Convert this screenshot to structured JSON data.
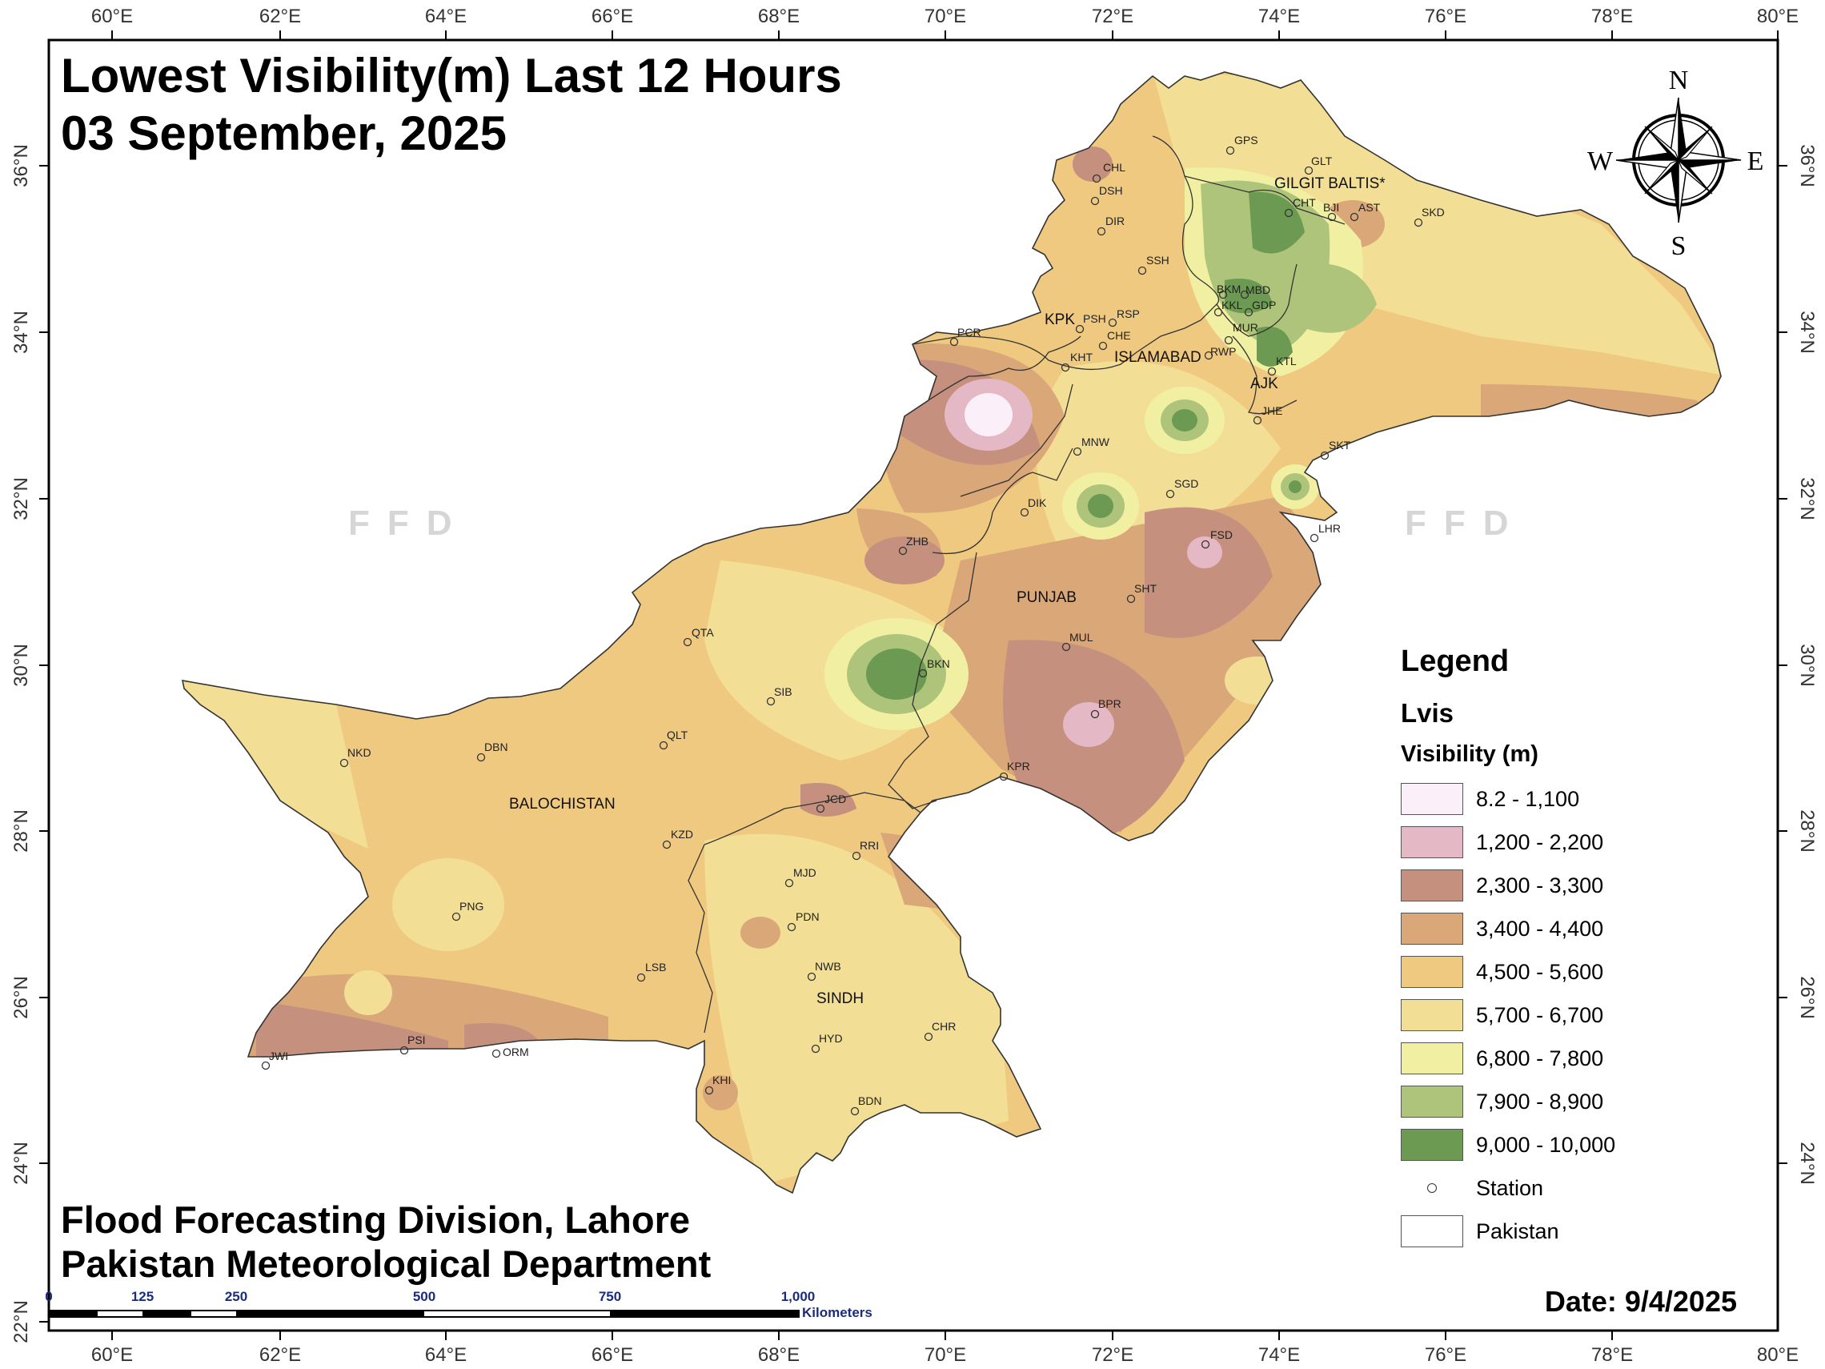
{
  "title": {
    "line1": "Lowest Visibility(m) Last 12 Hours",
    "line2": "03 September, 2025"
  },
  "footer": {
    "line1": "Flood Forecasting Division, Lahore",
    "line2": "Pakistan Meteorological Department"
  },
  "date_label": "Date: 9/4/2025",
  "watermark": "FFD",
  "axes": {
    "lon_ticks": [
      "60°E",
      "62°E",
      "64°E",
      "66°E",
      "68°E",
      "70°E",
      "72°E",
      "74°E",
      "76°E",
      "78°E",
      "80°E"
    ],
    "lat_ticks": [
      "36°N",
      "34°N",
      "32°N",
      "30°N",
      "28°N",
      "26°N",
      "24°N",
      "22°N"
    ]
  },
  "compass": {
    "n": "N",
    "s": "S",
    "e": "E",
    "w": "W"
  },
  "provinces": [
    "GILGIT BALTIS*",
    "KPK",
    "ISLAMABAD",
    "AJK",
    "PUNJAB",
    "BALOCHISTAN",
    "SINDH"
  ],
  "stations": [
    "GPS",
    "GLT",
    "CHL",
    "DSH",
    "CHT",
    "BJI",
    "AST",
    "SKD",
    "DIR",
    "SSH",
    "BKM",
    "MBD",
    "KKL",
    "GDP",
    "PSH",
    "RSP",
    "CHE",
    "MUR",
    "PCR",
    "KHT",
    "RWP",
    "KTL",
    "JHE",
    "MNW",
    "SKT",
    "SGD",
    "DIK",
    "LHR",
    "FSD",
    "ZHB",
    "SHT",
    "QTA",
    "MUL",
    "BKN",
    "SIB",
    "BPR",
    "NKD",
    "DBN",
    "QLT",
    "KPR",
    "JCD",
    "KZD",
    "RRI",
    "MJD",
    "PNG",
    "PDN",
    "LSB",
    "NWB",
    "HYD",
    "CHR",
    "PSI",
    "ORM",
    "JWI",
    "KHI",
    "BDN"
  ],
  "legend": {
    "title": "Legend",
    "layer": "Lvis",
    "field": "Visibility (m)",
    "classes": [
      {
        "label": "8.2 - 1,100",
        "color": "#fbf0fa"
      },
      {
        "label": "1,200 - 2,200",
        "color": "#e4b8c4"
      },
      {
        "label": "2,300 - 3,300",
        "color": "#c5907e"
      },
      {
        "label": "3,400 - 4,400",
        "color": "#d9a778"
      },
      {
        "label": "4,500 - 5,600",
        "color": "#efc97f"
      },
      {
        "label": "5,700 - 6,700",
        "color": "#f2df95"
      },
      {
        "label": "6,800 - 7,800",
        "color": "#f1f0a2"
      },
      {
        "label": "7,900 - 8,900",
        "color": "#aec47a"
      },
      {
        "label": "9,000 - 10,000",
        "color": "#6d9a52"
      }
    ],
    "station_label": "Station",
    "boundary_label": "Pakistan",
    "boundary_color": "#ffffff"
  },
  "scale_bar": {
    "ticks": [
      "0",
      "125",
      "250",
      "500",
      "750",
      "1,000"
    ],
    "unit": "Kilometers"
  }
}
